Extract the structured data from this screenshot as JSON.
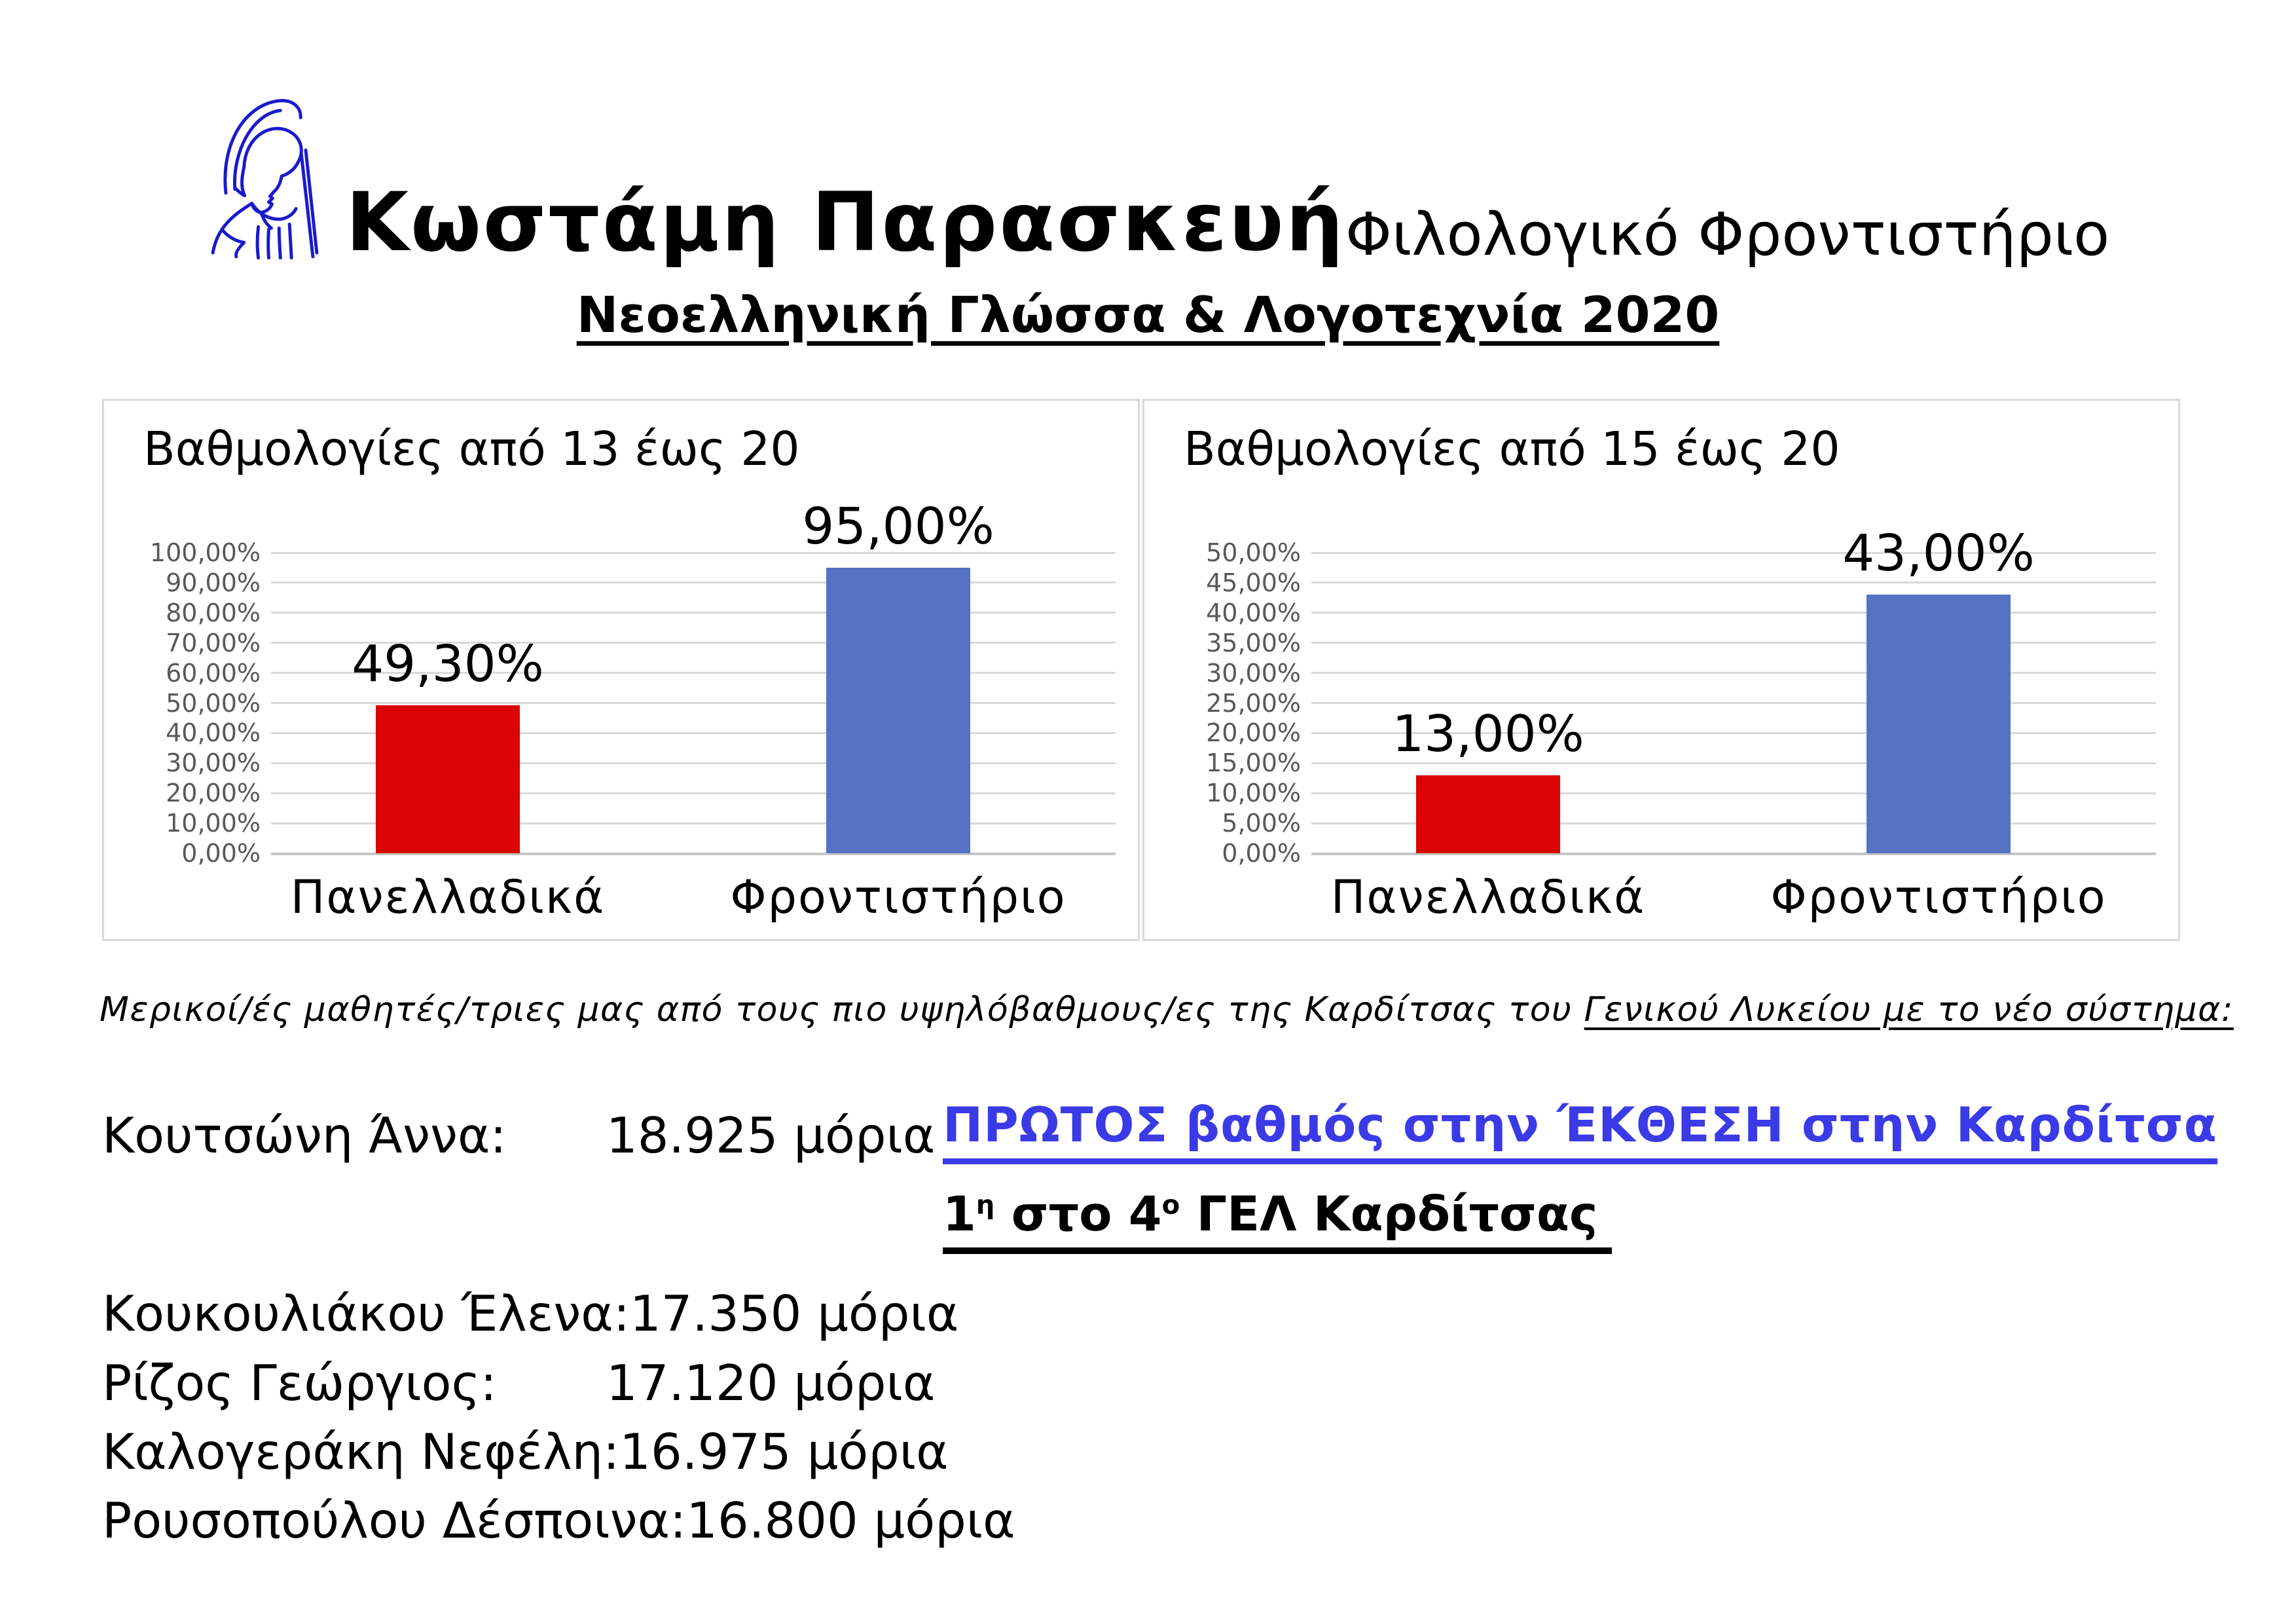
{
  "header": {
    "logo_icon": "athena-statue-logo",
    "logo_color": "#1A1ACC",
    "name": "Κωστάμη Παρασκευή",
    "subtitle_right": "Φιλολογικό Φροντιστήριο",
    "course_line": "Νεοελληνική Γλώσσα & Λογοτεχνία 2020"
  },
  "chart_data": [
    {
      "type": "bar",
      "title": "Βαθμολογίες από 13 έως 20",
      "categories": [
        "Πανελλαδικά",
        "Φροντιστήριο"
      ],
      "values": [
        49.3,
        95.0
      ],
      "data_labels": [
        "49,30%",
        "95,00%"
      ],
      "bar_colors": [
        "#DB0404",
        "#5572C4"
      ],
      "xlabel": "",
      "ylabel": "",
      "ylim": [
        0,
        100
      ],
      "ytick_step": 10,
      "tick_format": "percent-comma-2dp",
      "grid": true,
      "legend": "none"
    },
    {
      "type": "bar",
      "title": "Βαθμολογίες από 15 έως 20",
      "categories": [
        "Πανελλαδικά",
        "Φροντιστήριο"
      ],
      "values": [
        13.0,
        43.0
      ],
      "data_labels": [
        "13,00%",
        "43,00%"
      ],
      "bar_colors": [
        "#DB0404",
        "#5572C4"
      ],
      "xlabel": "",
      "ylabel": "",
      "ylim": [
        0,
        50
      ],
      "ytick_step": 5,
      "tick_format": "percent-comma-2dp",
      "grid": true,
      "legend": "none"
    }
  ],
  "intro": {
    "plain": "Μερικοί/ές μαθητές/τριες μας από τους πιο υψηλόβαθμους/ες της Καρδίτσας του ",
    "underlined": "Γενικού Λυκείου με το νέο σύστημα:"
  },
  "students": [
    {
      "name": "Κουτσώνη Άννα:",
      "score": "18.925 μόρια"
    },
    {
      "name": "Κουκουλιάκου Έλενα:",
      "score": "17.350 μόρια"
    },
    {
      "name": "Ρίζος Γεώργιος:",
      "score": "17.120 μόρια"
    },
    {
      "name": "Καλογεράκη Νεφέλη:",
      "score": "16.975 μόρια"
    },
    {
      "name": "Ρουσοπούλου Δέσποινα:",
      "score": "16.800 μόρια"
    }
  ],
  "highlight": {
    "color": "#3A3AE6",
    "line1": "ΠΡΩΤΟΣ βαθμός στην ΈΚΘΕΣΗ στην Καρδίτσα",
    "line2": {
      "num": "1",
      "sup1": "η",
      "mid": " στο 4",
      "sup2": "ο",
      "rest": " ΓΕΛ Καρδίτσας"
    }
  }
}
